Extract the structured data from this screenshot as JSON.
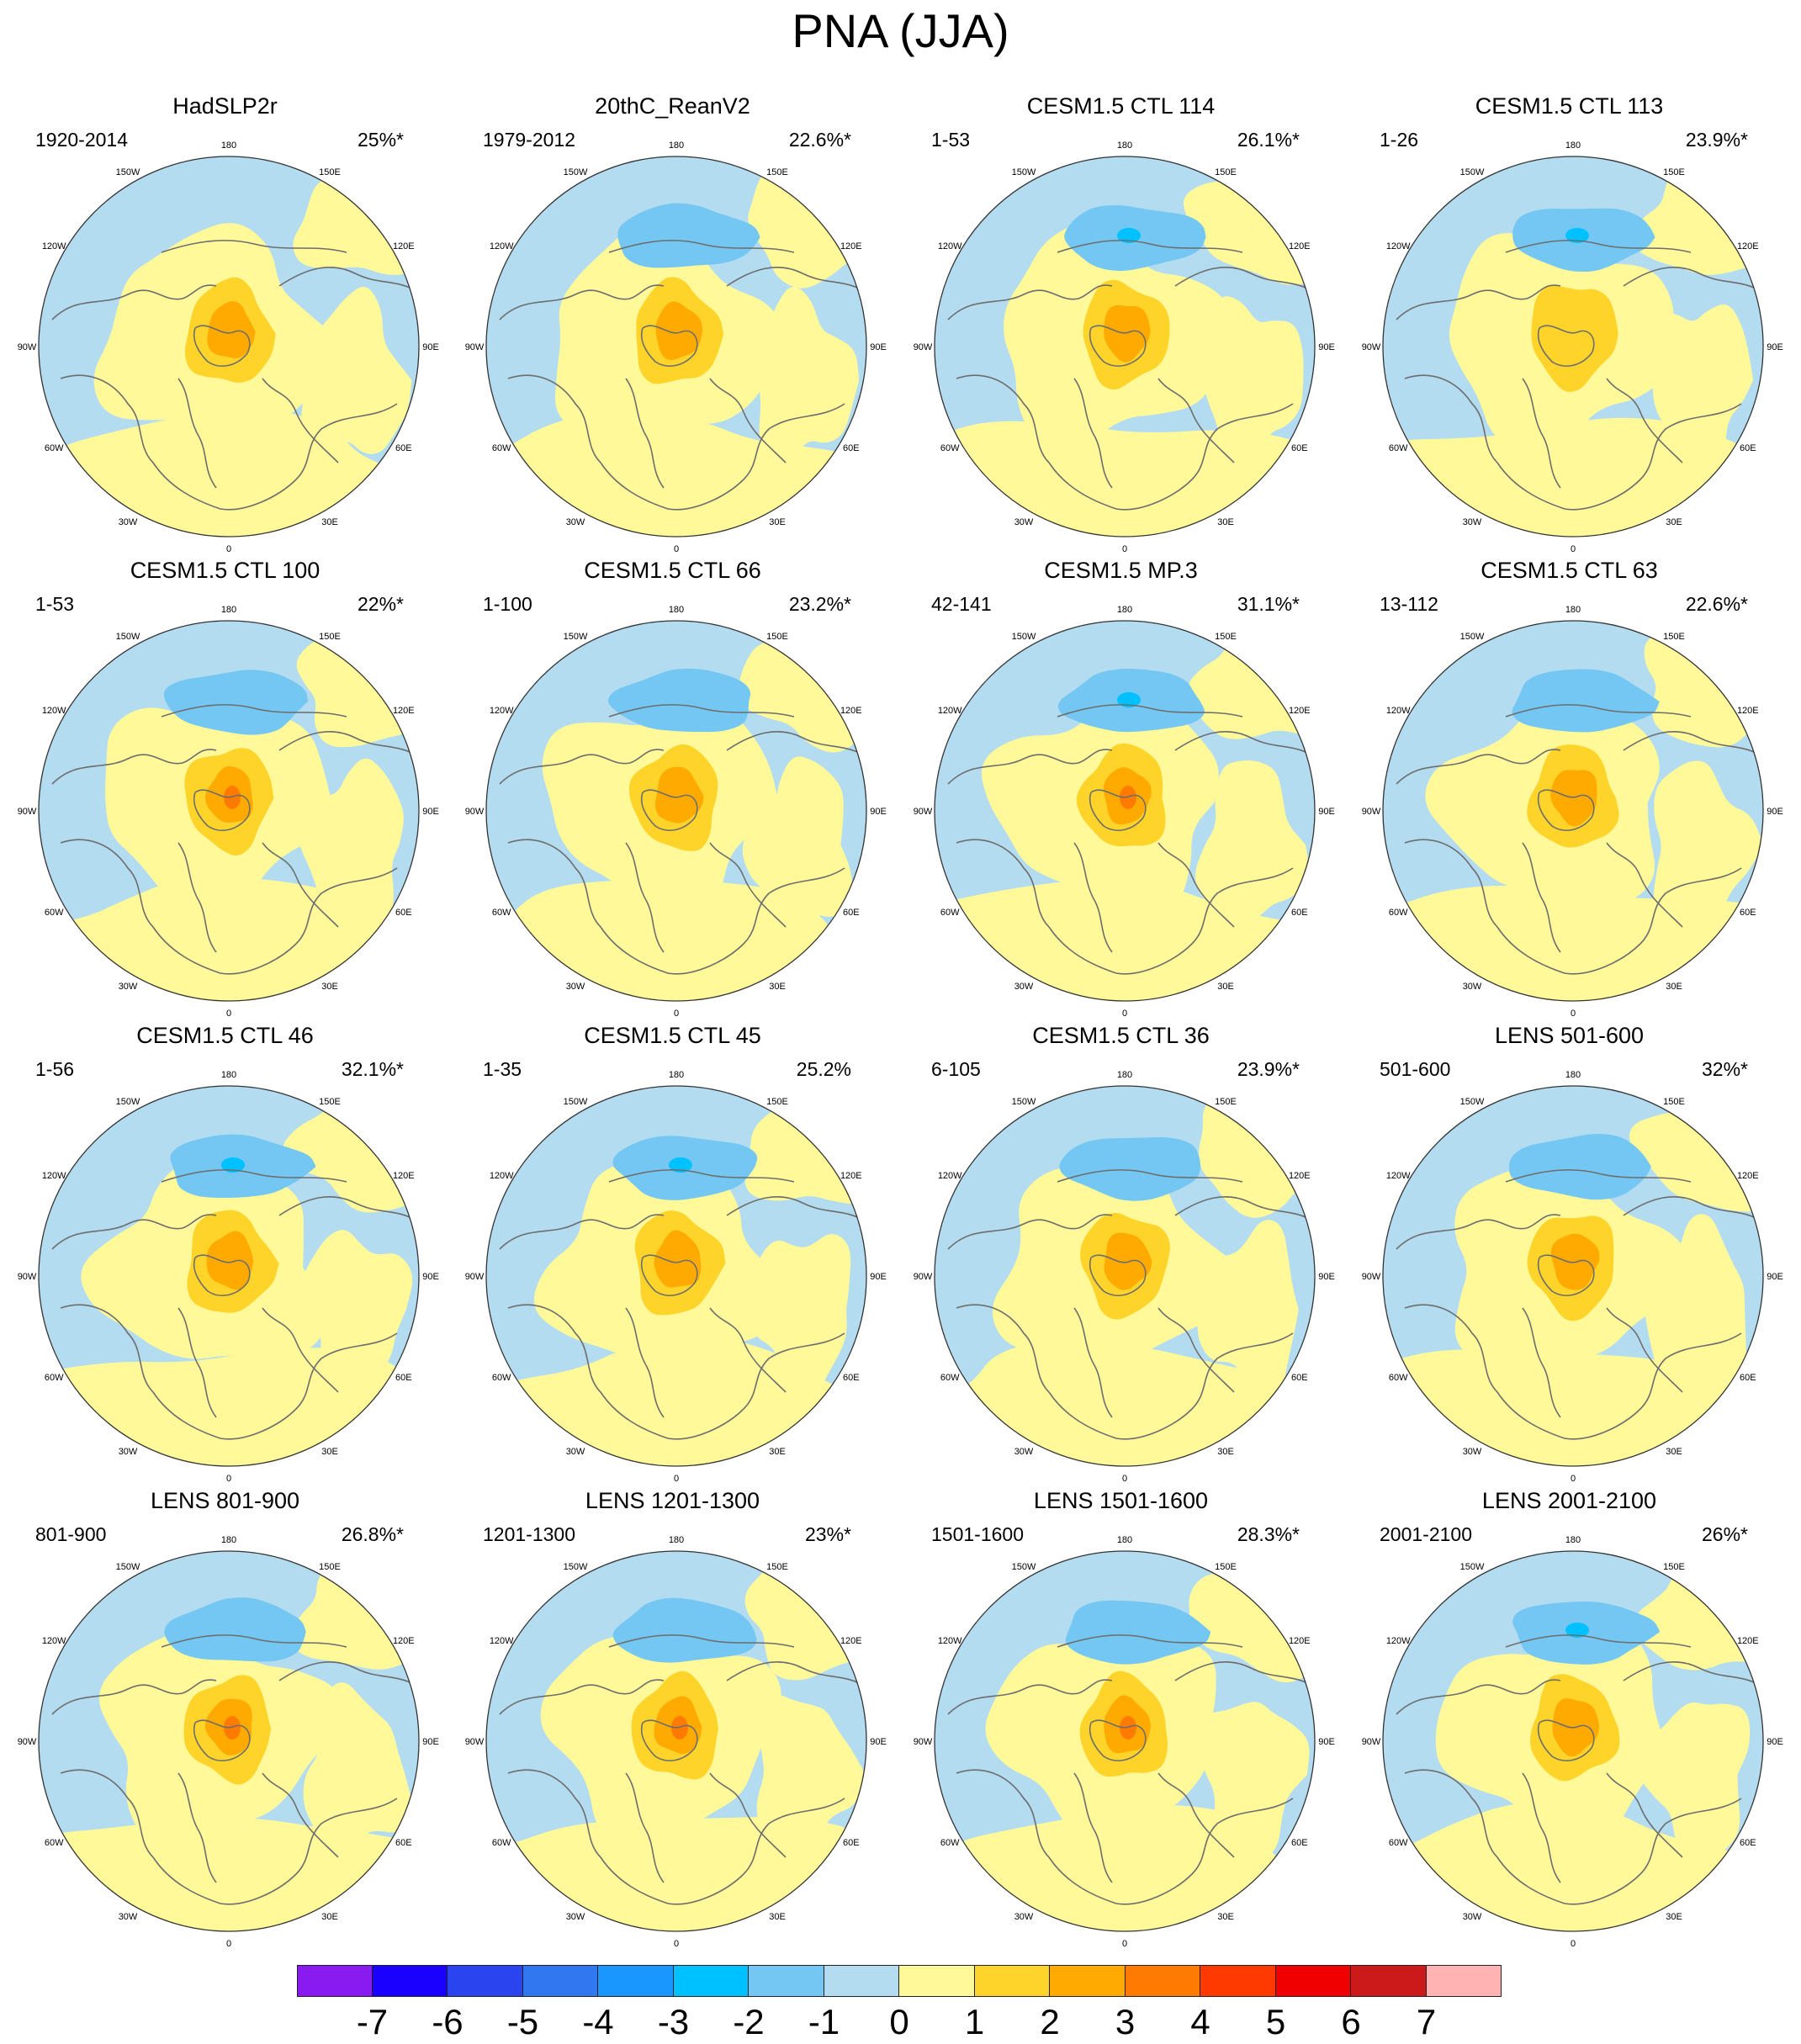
{
  "title": "PNA (JJA)",
  "lon_labels": [
    "180",
    "150E",
    "120E",
    "90E",
    "60E",
    "30E",
    "0",
    "30W",
    "60W",
    "90W",
    "120W",
    "150W"
  ],
  "colors": {
    "neg1": "#b3dcf0",
    "neg2": "#74c7f2",
    "neg3": "#00c1ff",
    "pos1": "#fff99a",
    "pos2": "#ffd42a",
    "pos3": "#ffaa00",
    "pos4": "#ff7a00",
    "coast": "#6d6d6d"
  },
  "colorbar": {
    "colors": [
      "#8a1bf0",
      "#1a00ff",
      "#2a45f0",
      "#3077f0",
      "#1a96ff",
      "#00c1ff",
      "#74c7f2",
      "#b3dcf0",
      "#fff99a",
      "#ffd42a",
      "#ffaa00",
      "#ff7a00",
      "#ff3a00",
      "#f00000",
      "#cc1a1a",
      "#ffb3b3"
    ],
    "labels": [
      "-7",
      "-6",
      "-5",
      "-4",
      "-3",
      "-2",
      "-1",
      "0",
      "1",
      "2",
      "3",
      "4",
      "5",
      "6",
      "7"
    ]
  },
  "panels": [
    {
      "title": "HadSLP2r",
      "period": "1920-2014",
      "pct": "25%*",
      "max_level": 3,
      "min_level": -1
    },
    {
      "title": "20thC_ReanV2",
      "period": "1979-2012",
      "pct": "22.6%*",
      "max_level": 3,
      "min_level": -2
    },
    {
      "title": "CESM1.5 CTL 114",
      "period": "1-53",
      "pct": "26.1%*",
      "max_level": 3,
      "min_level": -3
    },
    {
      "title": "CESM1.5 CTL 113",
      "period": "1-26",
      "pct": "23.9%*",
      "max_level": 2,
      "min_level": -3
    },
    {
      "title": "CESM1.5 CTL 100",
      "period": "1-53",
      "pct": "22%*",
      "max_level": 4,
      "min_level": -2
    },
    {
      "title": "CESM1.5 CTL 66",
      "period": "1-100",
      "pct": "23.2%*",
      "max_level": 3,
      "min_level": -2
    },
    {
      "title": "CESM1.5 MP.3",
      "period": "42-141",
      "pct": "31.1%*",
      "max_level": 4,
      "min_level": -3
    },
    {
      "title": "CESM1.5 CTL 63",
      "period": "13-112",
      "pct": "22.6%*",
      "max_level": 3,
      "min_level": -2
    },
    {
      "title": "CESM1.5 CTL 46",
      "period": "1-56",
      "pct": "32.1%*",
      "max_level": 3,
      "min_level": -3
    },
    {
      "title": "CESM1.5 CTL 45",
      "period": "1-35",
      "pct": "25.2%",
      "max_level": 3,
      "min_level": -3
    },
    {
      "title": "CESM1.5 CTL 36",
      "period": "6-105",
      "pct": "23.9%*",
      "max_level": 3,
      "min_level": -2
    },
    {
      "title": "LENS 501-600",
      "period": "501-600",
      "pct": "32%*",
      "max_level": 3,
      "min_level": -2
    },
    {
      "title": "LENS 801-900",
      "period": "801-900",
      "pct": "26.8%*",
      "max_level": 4,
      "min_level": -2
    },
    {
      "title": "LENS 1201-1300",
      "period": "1201-1300",
      "pct": "23%*",
      "max_level": 4,
      "min_level": -2
    },
    {
      "title": "LENS 1501-1600",
      "period": "1501-1600",
      "pct": "28.3%*",
      "max_level": 4,
      "min_level": -2
    },
    {
      "title": "LENS 2001-2100",
      "period": "2001-2100",
      "pct": "26%*",
      "max_level": 3,
      "min_level": -3
    }
  ]
}
